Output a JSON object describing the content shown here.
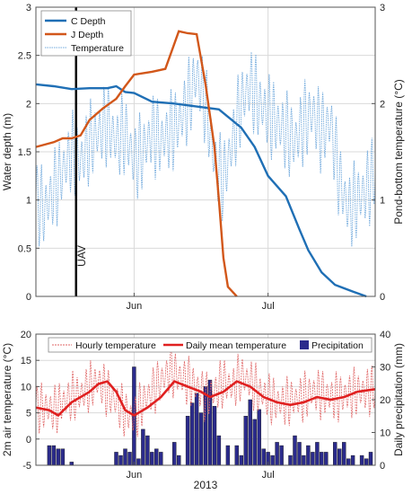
{
  "chart_data": [
    {
      "type": "line",
      "panel": "top",
      "xlabel": "",
      "ylabel": "Water depth (m)",
      "ylabel_right": "Pond-bottom temperature (°C)",
      "xlim": [
        "2013-05-10",
        "2013-07-25"
      ],
      "ylim": [
        0,
        3
      ],
      "ylim_right": [
        0,
        3
      ],
      "x_ticks": [
        {
          "date": "2013-06-01",
          "label": "Jun"
        },
        {
          "date": "2013-07-01",
          "label": "Jul"
        }
      ],
      "y_ticks": [
        "0",
        "0.5",
        "1",
        "1.5",
        "2",
        "2.5",
        "3"
      ],
      "y_ticks_right": [
        "0",
        "1",
        "2",
        "3"
      ],
      "grid": true,
      "legend": "top-left",
      "annotation": {
        "text": "UAV",
        "date": "2013-05-19"
      },
      "colors": {
        "c_depth": "#1f6fb5",
        "j_depth": "#d2571a",
        "temperature": "#6fa8dc",
        "uav_line": "#000000"
      },
      "series": [
        {
          "name": "C Depth",
          "x": [
            "2013-05-10",
            "2013-05-14",
            "2013-05-18",
            "2013-05-22",
            "2013-05-26",
            "2013-05-28",
            "2013-05-30",
            "2013-06-01",
            "2013-06-05",
            "2013-06-10",
            "2013-06-15",
            "2013-06-20",
            "2013-06-25",
            "2013-06-28",
            "2013-07-01",
            "2013-07-05",
            "2013-07-08",
            "2013-07-10",
            "2013-07-13",
            "2013-07-16",
            "2013-07-20",
            "2013-07-23"
          ],
          "y": [
            2.2,
            2.18,
            2.15,
            2.16,
            2.16,
            2.18,
            2.12,
            2.11,
            2.02,
            2.0,
            1.97,
            1.94,
            1.75,
            1.55,
            1.25,
            1.04,
            0.7,
            0.48,
            0.25,
            0.12,
            0.05,
            0.0
          ]
        },
        {
          "name": "J Depth",
          "x": [
            "2013-05-10",
            "2013-05-14",
            "2013-05-16",
            "2013-05-18",
            "2013-05-20",
            "2013-05-22",
            "2013-05-25",
            "2013-05-28",
            "2013-05-30",
            "2013-06-01",
            "2013-06-05",
            "2013-06-08",
            "2013-06-11",
            "2013-06-13",
            "2013-06-15",
            "2013-06-17",
            "2013-06-19",
            "2013-06-20",
            "2013-06-21",
            "2013-06-22",
            "2013-06-24"
          ],
          "y": [
            1.55,
            1.6,
            1.64,
            1.64,
            1.67,
            1.83,
            1.95,
            2.05,
            2.18,
            2.3,
            2.33,
            2.36,
            2.75,
            2.73,
            2.72,
            2.2,
            1.55,
            1.0,
            0.4,
            0.1,
            0.0
          ]
        },
        {
          "name": "Temperature",
          "x": [
            "2013-05-10",
            "2013-05-12",
            "2013-05-14",
            "2013-05-16",
            "2013-05-18",
            "2013-05-20",
            "2013-05-22",
            "2013-05-24",
            "2013-05-26",
            "2013-05-28",
            "2013-05-30",
            "2013-06-01",
            "2013-06-03",
            "2013-06-05",
            "2013-06-07",
            "2013-06-09",
            "2013-06-11",
            "2013-06-13",
            "2013-06-15",
            "2013-06-17",
            "2013-06-19",
            "2013-06-21",
            "2013-06-23",
            "2013-06-25",
            "2013-06-27",
            "2013-06-29",
            "2013-07-01",
            "2013-07-03",
            "2013-07-05",
            "2013-07-07",
            "2013-07-09",
            "2013-07-11",
            "2013-07-13",
            "2013-07-15",
            "2013-07-17",
            "2013-07-19",
            "2013-07-21",
            "2013-07-23",
            "2013-07-25"
          ],
          "y": [
            1.0,
            0.9,
            1.1,
            1.3,
            1.5,
            1.4,
            1.6,
            1.7,
            1.8,
            1.6,
            1.7,
            1.4,
            1.5,
            1.7,
            1.6,
            1.7,
            1.8,
            2.0,
            2.3,
            2.0,
            1.4,
            1.2,
            1.6,
            2.0,
            2.2,
            2.0,
            1.9,
            1.8,
            1.7,
            1.6,
            1.8,
            1.9,
            1.7,
            1.8,
            1.2,
            0.9,
            1.0,
            1.1,
            1.3
          ],
          "diurnal_amplitude": 0.45
        }
      ]
    },
    {
      "type": "bar+line",
      "panel": "bottom",
      "xlabel": "2013",
      "ylabel": "2m air temperature (°C)",
      "ylabel_right": "Daily precipitation (mm)",
      "xlim": [
        "2013-05-10",
        "2013-07-25"
      ],
      "ylim": [
        -5,
        20
      ],
      "ylim_right": [
        0,
        40
      ],
      "x_ticks": [
        {
          "date": "2013-06-01",
          "label": "Jun"
        },
        {
          "date": "2013-07-01",
          "label": "Jul"
        }
      ],
      "y_ticks": [
        "-5",
        "0",
        "5",
        "10",
        "15",
        "20"
      ],
      "y_ticks_right": [
        "0",
        "10",
        "20",
        "30",
        "40"
      ],
      "grid": true,
      "legend": "top",
      "colors": {
        "hourly": "#e06666",
        "daily": "#e02020",
        "precip": "#2b2b8c"
      },
      "series": [
        {
          "name": "Hourly temperature",
          "x": [
            "2013-05-10",
            "2013-05-12",
            "2013-05-14",
            "2013-05-16",
            "2013-05-18",
            "2013-05-20",
            "2013-05-22",
            "2013-05-24",
            "2013-05-26",
            "2013-05-28",
            "2013-05-30",
            "2013-06-01",
            "2013-06-03",
            "2013-06-05",
            "2013-06-07",
            "2013-06-09",
            "2013-06-11",
            "2013-06-13",
            "2013-06-15",
            "2013-06-17",
            "2013-06-19",
            "2013-06-21",
            "2013-06-23",
            "2013-06-25",
            "2013-06-27",
            "2013-06-29",
            "2013-07-01",
            "2013-07-03",
            "2013-07-05",
            "2013-07-07",
            "2013-07-09",
            "2013-07-11",
            "2013-07-13",
            "2013-07-15",
            "2013-07-17",
            "2013-07-19",
            "2013-07-21",
            "2013-07-23",
            "2013-07-25"
          ],
          "y": [
            6,
            6,
            5.5,
            7,
            8,
            8.5,
            10,
            11,
            9,
            7,
            5,
            4,
            7,
            9,
            11,
            13,
            12,
            11,
            10,
            8,
            9,
            11,
            10,
            12,
            11,
            9,
            8,
            7,
            7,
            7.5,
            8,
            9,
            8.5,
            8,
            8,
            8.5,
            9,
            9,
            9.5
          ],
          "diurnal_amplitude": 5
        },
        {
          "name": "Daily mean temperature",
          "x": [
            "2013-05-10",
            "2013-05-13",
            "2013-05-15",
            "2013-05-18",
            "2013-05-20",
            "2013-05-22",
            "2013-05-24",
            "2013-05-26",
            "2013-05-28",
            "2013-05-30",
            "2013-06-01",
            "2013-06-04",
            "2013-06-07",
            "2013-06-10",
            "2013-06-13",
            "2013-06-16",
            "2013-06-18",
            "2013-06-21",
            "2013-06-24",
            "2013-06-27",
            "2013-06-30",
            "2013-07-03",
            "2013-07-06",
            "2013-07-09",
            "2013-07-12",
            "2013-07-15",
            "2013-07-18",
            "2013-07-21",
            "2013-07-25"
          ],
          "y": [
            6,
            5.5,
            4.5,
            7,
            8,
            9,
            10.5,
            11,
            9,
            5.5,
            4.5,
            6,
            8,
            11,
            10,
            9,
            8,
            9,
            11,
            10,
            8,
            7,
            6.5,
            7,
            8,
            7.5,
            8,
            9,
            9.5
          ]
        },
        {
          "name": "Precipitation",
          "unit": "mm",
          "x": [
            "2013-05-13",
            "2013-05-14",
            "2013-05-15",
            "2013-05-16",
            "2013-05-18",
            "2013-05-28",
            "2013-05-29",
            "2013-05-30",
            "2013-05-31",
            "2013-06-01",
            "2013-06-02",
            "2013-06-03",
            "2013-06-04",
            "2013-06-05",
            "2013-06-06",
            "2013-06-07",
            "2013-06-10",
            "2013-06-11",
            "2013-06-13",
            "2013-06-14",
            "2013-06-15",
            "2013-06-16",
            "2013-06-17",
            "2013-06-18",
            "2013-06-19",
            "2013-06-20",
            "2013-06-22",
            "2013-06-24",
            "2013-06-25",
            "2013-06-26",
            "2013-06-27",
            "2013-06-28",
            "2013-06-29",
            "2013-06-30",
            "2013-07-01",
            "2013-07-02",
            "2013-07-03",
            "2013-07-04",
            "2013-07-06",
            "2013-07-07",
            "2013-07-08",
            "2013-07-09",
            "2013-07-10",
            "2013-07-11",
            "2013-07-12",
            "2013-07-13",
            "2013-07-14",
            "2013-07-16",
            "2013-07-17",
            "2013-07-18",
            "2013-07-19",
            "2013-07-20",
            "2013-07-22",
            "2013-07-23",
            "2013-07-24"
          ],
          "values": [
            6,
            6,
            5,
            5,
            1,
            4,
            3,
            5,
            4,
            30,
            2,
            11,
            9,
            4,
            5,
            4,
            7,
            3,
            15,
            19,
            22,
            16,
            24,
            26,
            18,
            9,
            6,
            6,
            3,
            15,
            20,
            14,
            17,
            5,
            4,
            3,
            7,
            6,
            3,
            9,
            7,
            3,
            6,
            4,
            7,
            4,
            4,
            7,
            5,
            7,
            2,
            3,
            3,
            2,
            4
          ]
        }
      ]
    }
  ]
}
